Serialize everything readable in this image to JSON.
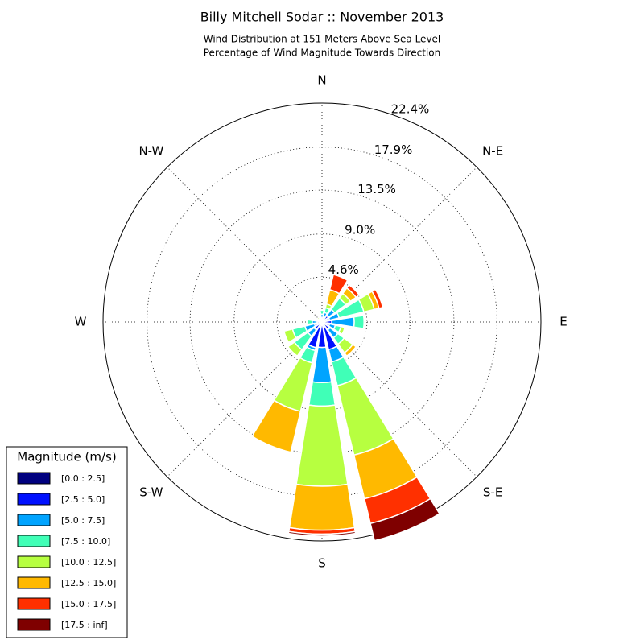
{
  "chart_data": {
    "type": "windrose",
    "title": "Billy Mitchell Sodar :: November 2013",
    "subtitle": [
      "Wind Distribution at 151 Meters Above Sea Level",
      "Percentage of Wind Magnitude Towards Direction"
    ],
    "categories": [
      "N",
      null,
      "N-E",
      null,
      "E",
      null,
      "S-E",
      null,
      "S",
      null,
      "S-W",
      null,
      "W",
      null,
      "N-W",
      null
    ],
    "rlim": [
      0,
      22.4
    ],
    "rticks": [
      {
        "value": 4.6,
        "label": "4.6%"
      },
      {
        "value": 9.0,
        "label": "9.0%"
      },
      {
        "value": 13.5,
        "label": "13.5%"
      },
      {
        "value": 17.9,
        "label": "17.9%"
      },
      {
        "value": 22.4,
        "label": "22.4%"
      }
    ],
    "grid": true,
    "legend_title": "Magnitude (m/s)",
    "legend_position": "lower left",
    "series": [
      {
        "name": "[0.0 : 2.5]",
        "color": "#00007f",
        "values": [
          0.1,
          0.1,
          0.1,
          0.2,
          0.2,
          0.2,
          0.2,
          0.3,
          0.2,
          0.3,
          0.2,
          0.2,
          0.1,
          0.1,
          0.1,
          0.1
        ]
      },
      {
        "name": "[2.5 : 5.0]",
        "color": "#0010ff",
        "values": [
          0.3,
          0.4,
          0.7,
          0.6,
          0.8,
          0.6,
          0.8,
          2.6,
          2.4,
          2.4,
          0.8,
          0.6,
          0.4,
          0.2,
          0.2,
          0.1
        ]
      },
      {
        "name": "[5.0 : 7.5]",
        "color": "#00a4ff",
        "values": [
          0.4,
          0.5,
          0.8,
          1.0,
          2.3,
          0.6,
          1.0,
          1.3,
          3.6,
          0.3,
          0.8,
          1.0,
          0.5,
          0.1,
          0.1,
          0.1
        ]
      },
      {
        "name": "[7.5 : 10.0]",
        "color": "#40ffb7",
        "values": [
          0.4,
          0.5,
          1.4,
          2.6,
          1.0,
          0.6,
          0.8,
          2.5,
          2.4,
          1.3,
          1.7,
          1.3,
          0.5,
          0,
          0,
          0
        ]
      },
      {
        "name": "[10.0 : 12.5]",
        "color": "#b7ff40",
        "values": [
          0,
          0.4,
          0.6,
          1.1,
          0,
          0.4,
          1.1,
          7.3,
          8.2,
          5.1,
          0.8,
          0.9,
          0,
          0,
          0.2,
          0
        ]
      },
      {
        "name": "[12.5 : 15.0]",
        "color": "#ffb900",
        "values": [
          0,
          1.5,
          0.7,
          0.5,
          0,
          0,
          0.4,
          4.6,
          4.5,
          4.3,
          0,
          0,
          0,
          0,
          0,
          0
        ]
      },
      {
        "name": "[15.0 : 17.5]",
        "color": "#ff3000",
        "values": [
          0,
          1.6,
          0.4,
          0.4,
          0,
          0,
          0,
          2.6,
          0.4,
          0,
          0,
          0,
          0,
          0,
          0,
          0
        ]
      },
      {
        "name": "[17.5 : inf]",
        "color": "#7f0000",
        "values": [
          0,
          0,
          0,
          0,
          0,
          0,
          0,
          1.8,
          0.2,
          0,
          0,
          0,
          0,
          0,
          0,
          0
        ]
      }
    ]
  }
}
